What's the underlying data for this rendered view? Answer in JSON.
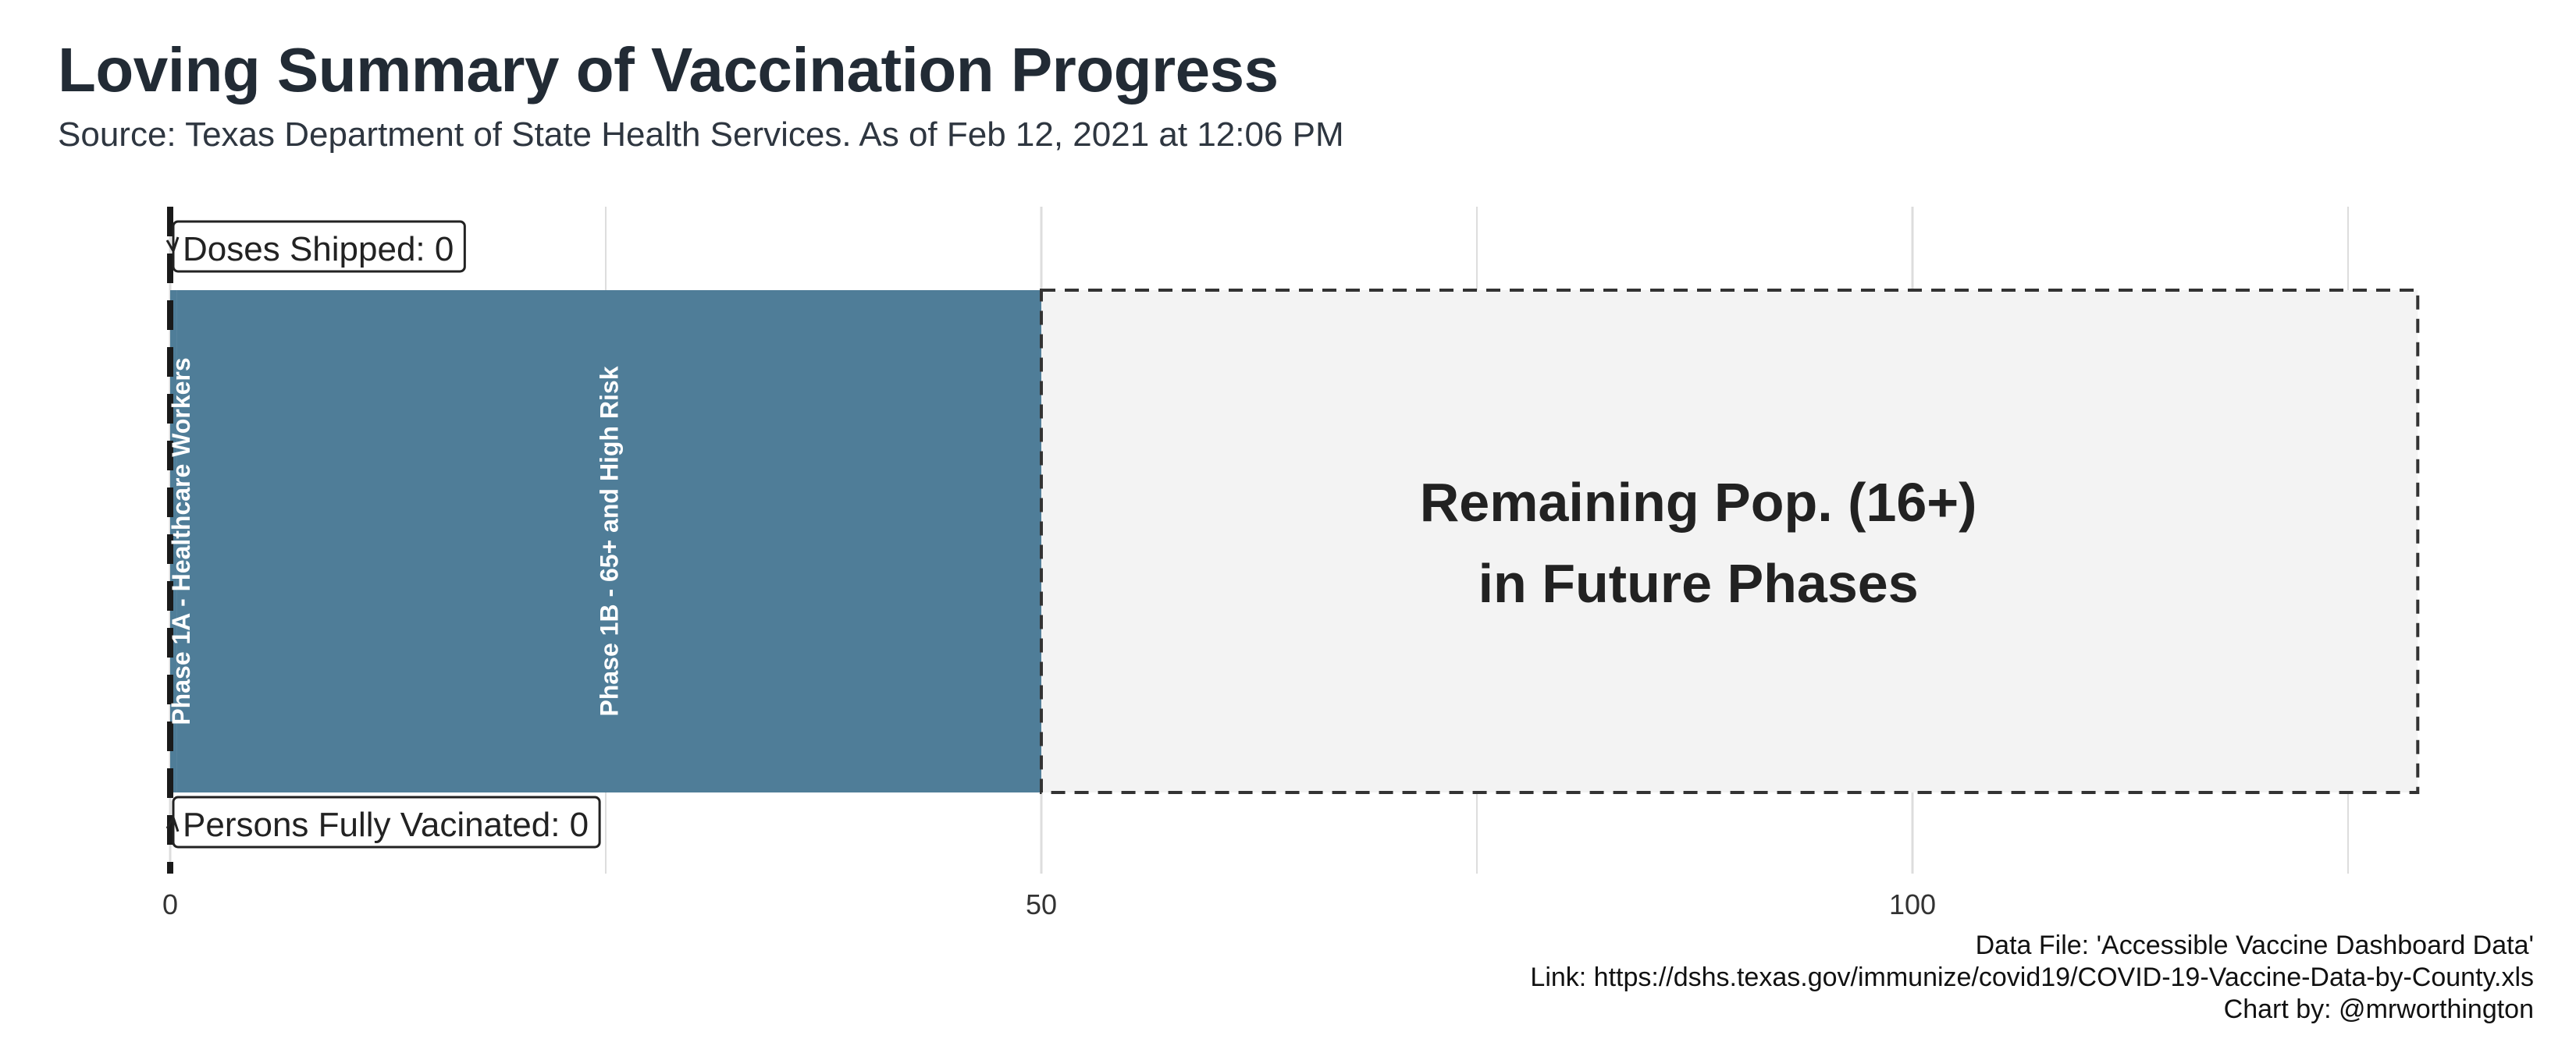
{
  "title": "Loving Summary of Vaccination Progress",
  "subtitle": "Source: Texas Department of State Health Services. As of Feb 12, 2021 at 12:06 PM",
  "caption": {
    "data_file": "Data File: 'Accessible Vaccine Dashboard Data'",
    "link": "Link: https://dshs.texas.gov/immunize/covid19/COVID-19-Vaccine-Data-by-County.xls",
    "credit": "Chart by: @mrworthington"
  },
  "colors": {
    "phase_fill": "#4f7d98",
    "remaining_fill": "#f3f3f3",
    "grid": "#dddddd",
    "text": "#222b35"
  },
  "chart_data": {
    "type": "bar",
    "orientation": "horizontal",
    "xlim": [
      0,
      129
    ],
    "x_ticks": [
      0,
      50,
      100
    ],
    "grid": true,
    "segments": [
      {
        "label": "Phase 1A - Healthcare Workers",
        "start": 0,
        "end": 0.4,
        "style": "filled"
      },
      {
        "label": "Phase 1B - 65+ and High Risk",
        "start": 0.4,
        "end": 50,
        "style": "filled"
      },
      {
        "label": "",
        "start": 50,
        "end": 129,
        "style": "dashed-outline"
      }
    ],
    "remaining_label": [
      "Remaining Pop. (16+)",
      "in Future Phases"
    ],
    "annotations": [
      {
        "text": "Doses Shipped: 0",
        "value": 0,
        "position": "top"
      },
      {
        "text": "Persons Fully Vacinated: 0",
        "value": 0,
        "position": "bottom"
      }
    ]
  }
}
